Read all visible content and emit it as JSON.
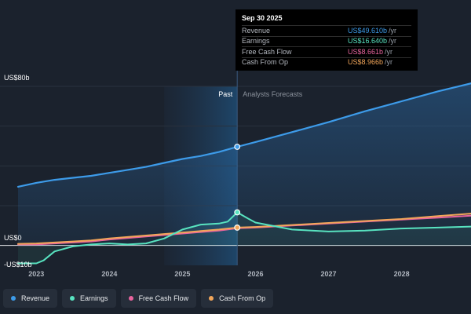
{
  "tooltip": {
    "date": "Sep 30 2025",
    "rows": [
      {
        "label": "Revenue",
        "value": "US$49.610b",
        "unit": "/yr",
        "color": "#3d9be9"
      },
      {
        "label": "Earnings",
        "value": "US$16.640b",
        "unit": "/yr",
        "color": "#58e3c0"
      },
      {
        "label": "Free Cash Flow",
        "value": "US$8.661b",
        "unit": "/yr",
        "color": "#e8649e"
      },
      {
        "label": "Cash From Op",
        "value": "US$8.966b",
        "unit": "/yr",
        "color": "#f2a65a"
      }
    ]
  },
  "legend": [
    {
      "label": "Revenue",
      "color": "#3d9be9"
    },
    {
      "label": "Earnings",
      "color": "#58e3c0"
    },
    {
      "label": "Free Cash Flow",
      "color": "#e8649e"
    },
    {
      "label": "Cash From Op",
      "color": "#f2a65a"
    }
  ],
  "chart_data": {
    "type": "line",
    "x_ticks": [
      "2023",
      "2024",
      "2025",
      "2026",
      "2027",
      "2028"
    ],
    "y_ticks": [
      "US$80b",
      "US$0",
      "-US$10b"
    ],
    "ylim": [
      -10,
      80
    ],
    "xlim": [
      2022.75,
      2028.95
    ],
    "regions": {
      "past_label": "Past",
      "forecast_label": "Analysts Forecasts",
      "split_x": 2025.75
    },
    "highlight_x": 2025.75,
    "series": [
      {
        "name": "Revenue",
        "color": "#3d9be9",
        "points": [
          [
            2022.75,
            29.5
          ],
          [
            2023.0,
            31.5
          ],
          [
            2023.25,
            33.0
          ],
          [
            2023.5,
            34.0
          ],
          [
            2023.75,
            35.0
          ],
          [
            2024.0,
            36.5
          ],
          [
            2024.25,
            38.0
          ],
          [
            2024.5,
            39.5
          ],
          [
            2024.75,
            41.5
          ],
          [
            2025.0,
            43.5
          ],
          [
            2025.25,
            45.0
          ],
          [
            2025.5,
            47.0
          ],
          [
            2025.75,
            49.61
          ],
          [
            2026.0,
            52.0
          ],
          [
            2026.5,
            57.0
          ],
          [
            2027.0,
            62.0
          ],
          [
            2027.5,
            67.5
          ],
          [
            2028.0,
            72.5
          ],
          [
            2028.5,
            77.5
          ],
          [
            2028.95,
            81.5
          ]
        ]
      },
      {
        "name": "Earnings",
        "color": "#58e3c0",
        "points": [
          [
            2022.75,
            -9.0
          ],
          [
            2023.0,
            -9.0
          ],
          [
            2023.1,
            -7.5
          ],
          [
            2023.25,
            -3.0
          ],
          [
            2023.5,
            -0.5
          ],
          [
            2023.75,
            0.5
          ],
          [
            2024.0,
            1.0
          ],
          [
            2024.25,
            0.5
          ],
          [
            2024.5,
            1.0
          ],
          [
            2024.75,
            3.5
          ],
          [
            2025.0,
            8.0
          ],
          [
            2025.25,
            10.5
          ],
          [
            2025.5,
            11.0
          ],
          [
            2025.62,
            12.0
          ],
          [
            2025.75,
            16.64
          ],
          [
            2025.9,
            13.5
          ],
          [
            2026.0,
            11.5
          ],
          [
            2026.5,
            8.0
          ],
          [
            2027.0,
            7.0
          ],
          [
            2027.5,
            7.5
          ],
          [
            2028.0,
            8.5
          ],
          [
            2028.5,
            9.0
          ],
          [
            2028.95,
            9.5
          ]
        ]
      },
      {
        "name": "Free Cash Flow",
        "color": "#e8649e",
        "points": [
          [
            2022.75,
            0.5
          ],
          [
            2023.0,
            0.5
          ],
          [
            2023.5,
            1.5
          ],
          [
            2023.75,
            2.0
          ],
          [
            2024.0,
            3.0
          ],
          [
            2024.5,
            4.5
          ],
          [
            2025.0,
            6.0
          ],
          [
            2025.5,
            7.5
          ],
          [
            2025.75,
            8.66
          ],
          [
            2026.0,
            9.0
          ],
          [
            2026.5,
            10.0
          ],
          [
            2027.0,
            11.0
          ],
          [
            2027.5,
            12.0
          ],
          [
            2028.0,
            13.0
          ],
          [
            2028.5,
            14.0
          ],
          [
            2028.95,
            15.0
          ]
        ]
      },
      {
        "name": "Cash From Op",
        "color": "#f2a65a",
        "points": [
          [
            2022.75,
            0.8
          ],
          [
            2023.0,
            1.0
          ],
          [
            2023.5,
            2.0
          ],
          [
            2023.75,
            2.5
          ],
          [
            2024.0,
            3.5
          ],
          [
            2024.5,
            5.0
          ],
          [
            2025.0,
            6.5
          ],
          [
            2025.5,
            8.0
          ],
          [
            2025.75,
            8.97
          ],
          [
            2026.0,
            9.3
          ],
          [
            2026.5,
            10.3
          ],
          [
            2027.0,
            11.3
          ],
          [
            2027.5,
            12.3
          ],
          [
            2028.0,
            13.3
          ],
          [
            2028.5,
            14.8
          ],
          [
            2028.95,
            16.0
          ]
        ]
      }
    ]
  }
}
